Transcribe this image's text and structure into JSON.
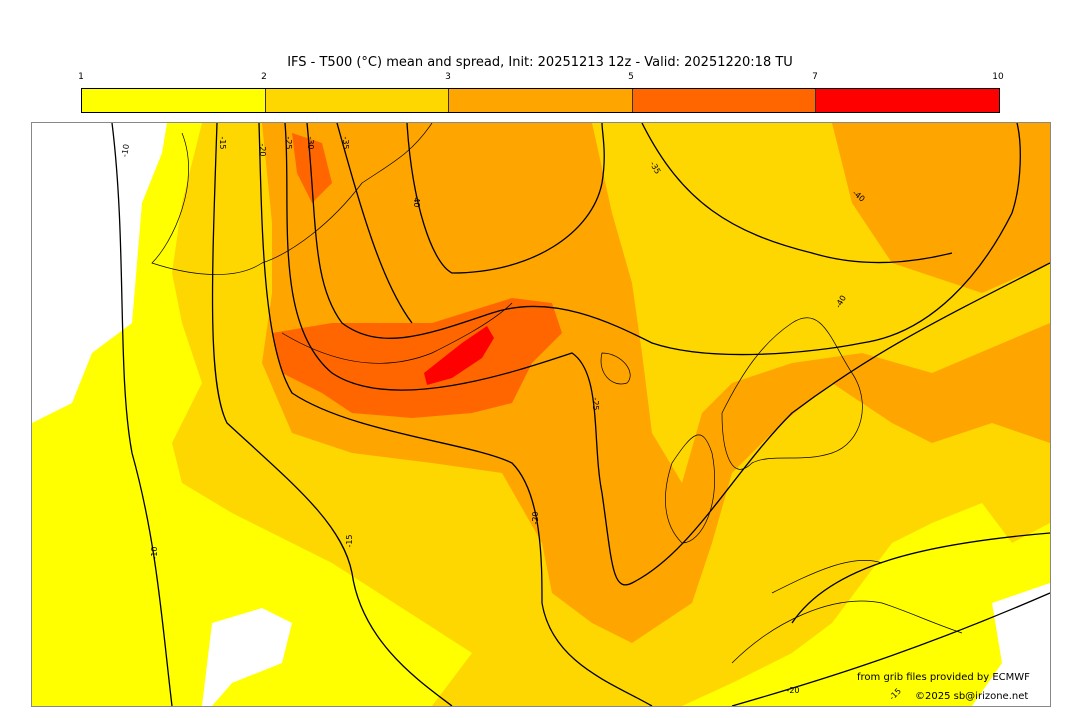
{
  "title": "IFS - T500 (°C) mean and spread, Init: 20251213 12z - Valid: 20251220:18 TU",
  "colorbar": {
    "ticks": [
      "1",
      "2",
      "3",
      "5",
      "7",
      "10"
    ],
    "colors": [
      "#ffff00",
      "#ffd700",
      "#ffa500",
      "#ff6600",
      "#ff0000"
    ]
  },
  "contour_labels": [
    "-10",
    "-15",
    "-20",
    "-25",
    "-30",
    "-35",
    "-40",
    "-35",
    "-40",
    "-40",
    "-25",
    "-20",
    "-15",
    "-10",
    "-20",
    "-15"
  ],
  "credits": {
    "source": "from grib files provided by ECMWF",
    "copyright": "©2025 sb@irizone.net"
  }
}
